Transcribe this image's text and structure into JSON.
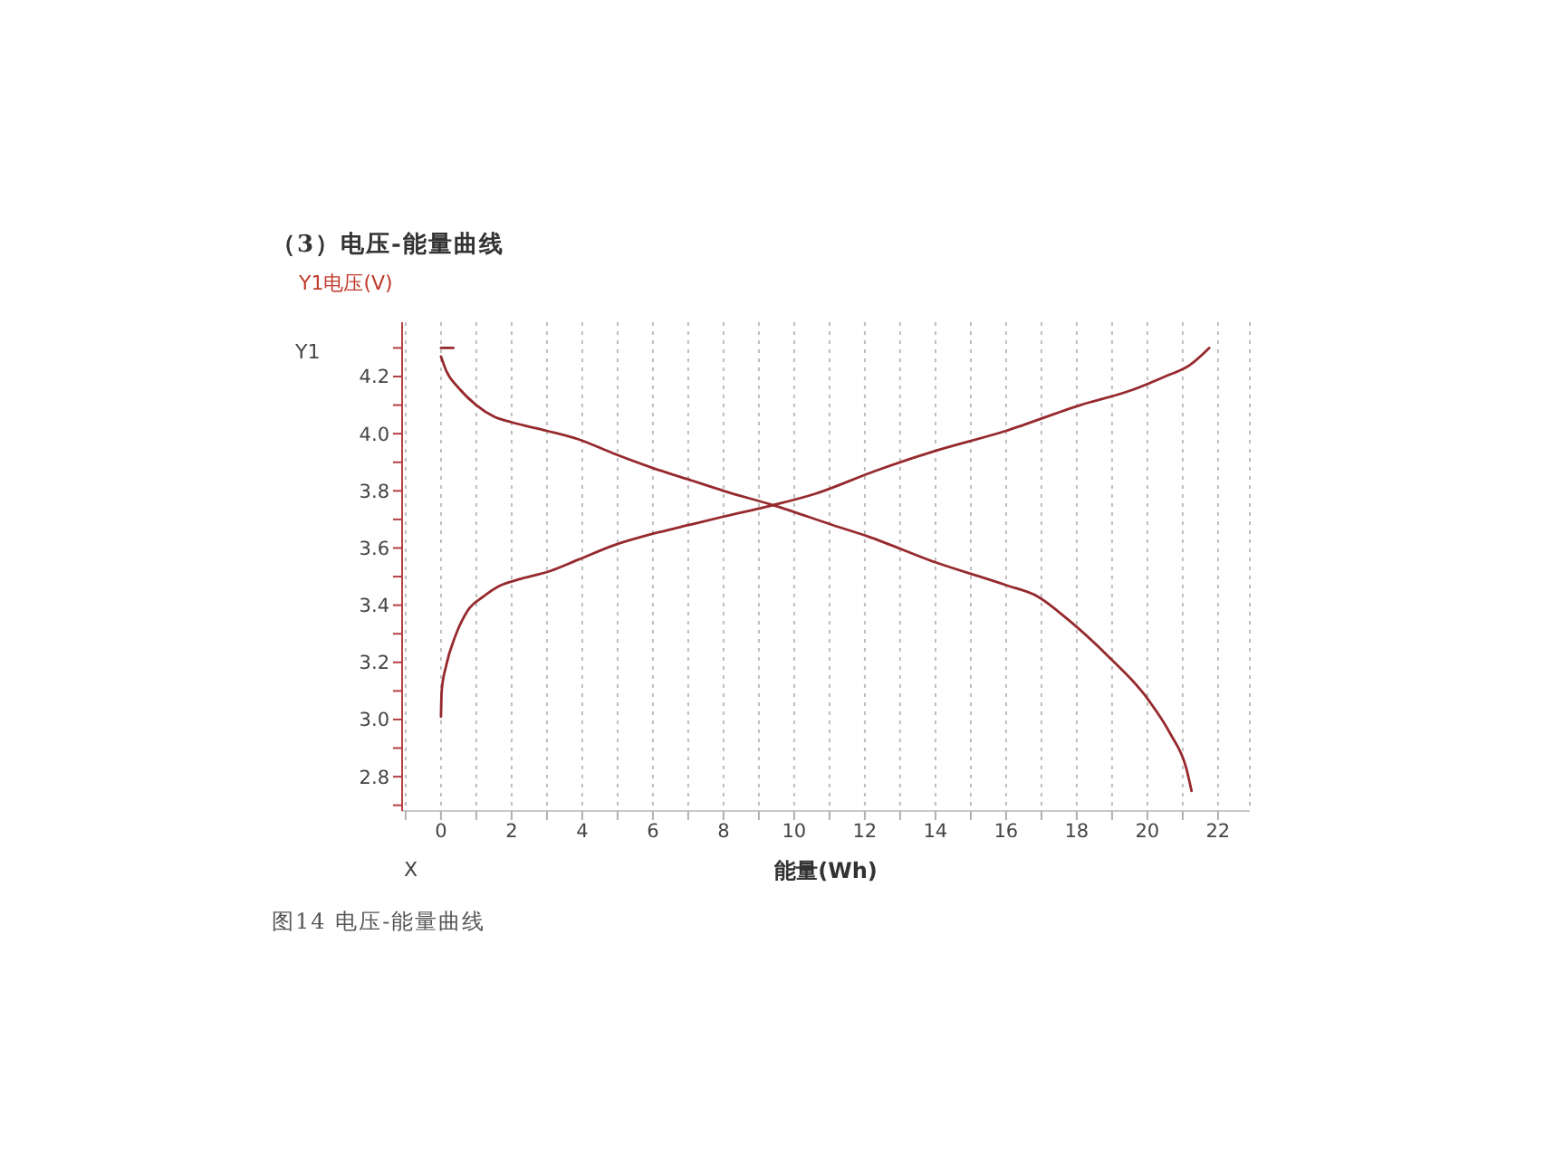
{
  "chart_data": {
    "type": "line",
    "title": "（3）电压-能量曲线",
    "xlabel": "能量(Wh)",
    "ylabel": "Y1电压(V)",
    "annotations": [
      "Y1",
      "X",
      "图14 电压-能量曲线"
    ],
    "series": [
      {
        "color": "#96292d",
        "x": [
          0,
          0.15,
          0.5,
          1,
          1.5,
          2,
          3,
          3.9,
          4.9,
          6,
          7,
          8,
          9.4,
          11.1,
          12.1,
          14,
          16,
          16.9,
          17.75,
          18.9,
          19.96,
          20.65,
          21.1,
          21.25
        ],
        "values": [
          4.27,
          4.22,
          4.16,
          4.1,
          4.06,
          4.04,
          4.01,
          3.98,
          3.93,
          3.88,
          3.84,
          3.8,
          3.75,
          3.68,
          3.64,
          3.55,
          3.47,
          3.43,
          3.35,
          3.22,
          3.08,
          2.95,
          2.83,
          2.75
        ]
      },
      {
        "color": "#96292d",
        "x": [
          0,
          0.02,
          0.15,
          0.4,
          0.75,
          1.2,
          1.7,
          2.2,
          3.1,
          3.9,
          4.9,
          6,
          7,
          8,
          9.4,
          10.6,
          12.3,
          14,
          16,
          18.1,
          19.5,
          20.5,
          21.2,
          21.75
        ],
        "values": [
          3.01,
          3.1,
          3.19,
          3.29,
          3.38,
          3.43,
          3.47,
          3.49,
          3.52,
          3.56,
          3.61,
          3.65,
          3.68,
          3.71,
          3.75,
          3.79,
          3.87,
          3.94,
          4.01,
          4.1,
          4.15,
          4.2,
          4.24,
          4.3
        ]
      },
      {
        "color": "#96292d",
        "x": [
          0,
          0.35
        ],
        "values": [
          4.3,
          4.3
        ]
      }
    ],
    "xlim": [
      -1.1,
      22.9
    ],
    "ylim": [
      2.68,
      4.39
    ],
    "xticks": [
      {
        "value": -1,
        "label": null
      },
      0,
      {
        "value": 1,
        "label": null
      },
      2,
      {
        "value": 3,
        "label": null
      },
      4,
      {
        "value": 5,
        "label": null
      },
      6,
      {
        "value": 7,
        "label": null
      },
      8,
      {
        "value": 9,
        "label": null
      },
      10,
      {
        "value": 11,
        "label": null
      },
      12,
      {
        "value": 13,
        "label": null
      },
      14,
      {
        "value": 15,
        "label": null
      },
      16,
      {
        "value": 17,
        "label": null
      },
      18,
      {
        "value": 19,
        "label": null
      },
      20,
      {
        "value": 21,
        "label": null
      },
      22
    ],
    "yticks": [
      {
        "value": 2.7,
        "label": null
      },
      2.8,
      {
        "value": 2.9,
        "label": null
      },
      {
        "value": 3,
        "label": "3.0"
      },
      {
        "value": 3.1,
        "label": null
      },
      3.2,
      {
        "value": 3.3,
        "label": null
      },
      3.4,
      {
        "value": 3.5,
        "label": null
      },
      3.6,
      {
        "value": 3.7,
        "label": null
      },
      3.8,
      {
        "value": 3.9,
        "label": null
      },
      {
        "value": 4,
        "label": "4.0"
      },
      {
        "value": 4.1,
        "label": null
      },
      4.2,
      {
        "value": 4.3,
        "label": null
      }
    ],
    "grid": "x"
  }
}
